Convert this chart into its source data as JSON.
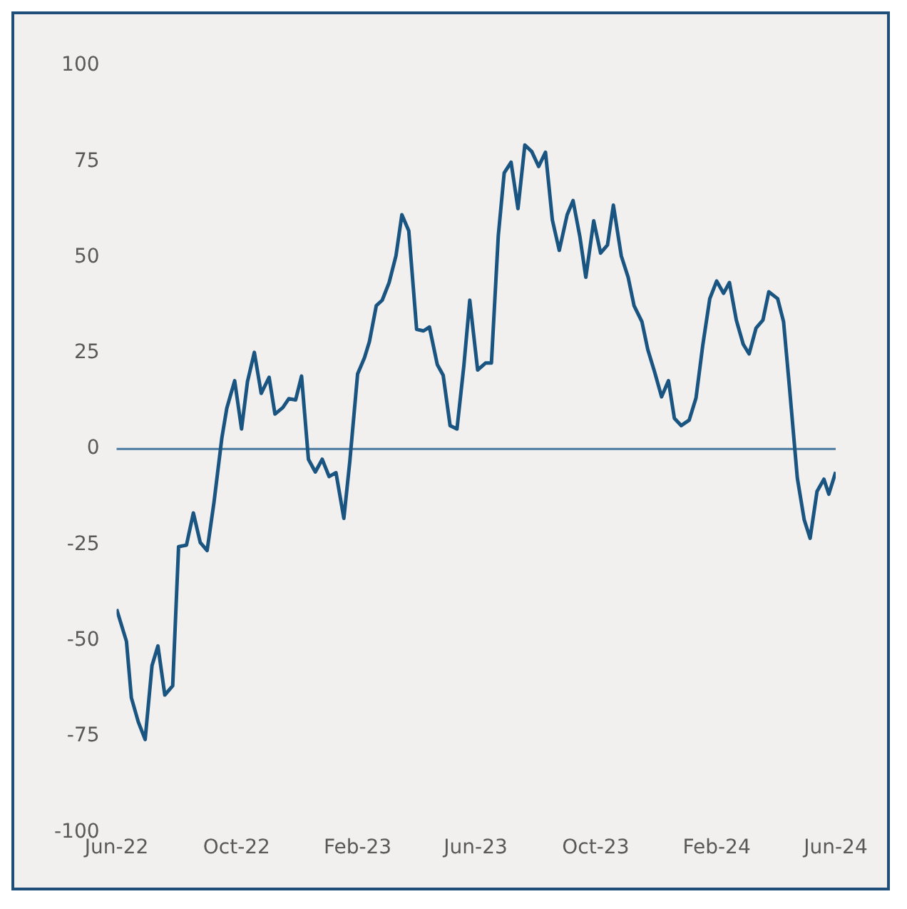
{
  "chart_data": {
    "type": "line",
    "x": [
      "2022-06-01",
      "2022-06-11",
      "2022-06-16",
      "2022-06-23",
      "2022-06-30",
      "2022-07-07",
      "2022-07-13",
      "2022-07-20",
      "2022-07-28",
      "2022-08-03",
      "2022-08-11",
      "2022-08-18",
      "2022-08-25",
      "2022-09-01",
      "2022-09-08",
      "2022-09-16",
      "2022-09-21",
      "2022-09-29",
      "2022-10-06",
      "2022-10-12",
      "2022-10-19",
      "2022-10-26",
      "2022-11-03",
      "2022-11-09",
      "2022-11-17",
      "2022-11-23",
      "2022-11-30",
      "2022-12-06",
      "2022-12-13",
      "2022-12-20",
      "2022-12-27",
      "2023-01-03",
      "2023-01-10",
      "2023-01-18",
      "2023-01-24",
      "2023-02-01",
      "2023-02-08",
      "2023-02-13",
      "2023-02-20",
      "2023-02-26",
      "2023-03-05",
      "2023-03-12",
      "2023-03-18",
      "2023-03-25",
      "2023-04-02",
      "2023-04-09",
      "2023-04-15",
      "2023-04-23",
      "2023-04-29",
      "2023-05-06",
      "2023-05-13",
      "2023-05-20",
      "2023-05-26",
      "2023-06-03",
      "2023-06-11",
      "2023-06-17",
      "2023-06-24",
      "2023-06-30",
      "2023-07-07",
      "2023-07-14",
      "2023-07-21",
      "2023-07-28",
      "2023-08-04",
      "2023-08-11",
      "2023-08-18",
      "2023-08-25",
      "2023-09-02",
      "2023-09-08",
      "2023-09-15",
      "2023-09-21",
      "2023-09-29",
      "2023-10-06",
      "2023-10-13",
      "2023-10-19",
      "2023-10-27",
      "2023-11-03",
      "2023-11-09",
      "2023-11-17",
      "2023-11-23",
      "2023-11-30",
      "2023-12-07",
      "2023-12-14",
      "2023-12-20",
      "2023-12-27",
      "2024-01-04",
      "2024-01-11",
      "2024-01-18",
      "2024-01-25",
      "2024-02-01",
      "2024-02-08",
      "2024-02-14",
      "2024-02-21",
      "2024-02-28",
      "2024-03-05",
      "2024-03-12",
      "2024-03-19",
      "2024-03-25",
      "2024-04-03",
      "2024-04-09",
      "2024-04-15",
      "2024-04-23",
      "2024-04-30",
      "2024-05-06",
      "2024-05-13",
      "2024-05-20",
      "2024-05-25",
      "2024-06-01"
    ],
    "series": [
      {
        "color": "#1a5480",
        "values": [
          -41.8,
          -50.2,
          -64.9,
          -71.2,
          -75.8,
          -56.5,
          -51.4,
          -64.2,
          -61.8,
          -25.5,
          -25.1,
          -16.7,
          -24.4,
          -26.5,
          -13.9,
          2.9,
          10.6,
          17.8,
          5.2,
          17.5,
          25.2,
          14.5,
          18.7,
          9.1,
          10.8,
          13.1,
          12.8,
          19.0,
          -2.7,
          -6.0,
          -2.7,
          -7.2,
          -6.2,
          -18.1,
          -3.4,
          19.6,
          23.8,
          28.0,
          37.4,
          38.8,
          43.4,
          50.4,
          61.1,
          56.9,
          31.2,
          30.8,
          31.8,
          22.0,
          19.2,
          6.1,
          5.2,
          21.7,
          38.8,
          20.6,
          22.4,
          22.4,
          55.6,
          72.0,
          74.8,
          62.7,
          79.3,
          77.6,
          73.7,
          77.4,
          59.7,
          51.8,
          61.1,
          64.8,
          55.3,
          44.8,
          59.5,
          51.1,
          53.2,
          63.6,
          50.4,
          44.8,
          37.4,
          33.2,
          25.9,
          20.0,
          13.6,
          17.8,
          8.0,
          6.1,
          7.5,
          13.3,
          27.3,
          39.2,
          43.8,
          40.6,
          43.4,
          33.6,
          27.3,
          24.8,
          31.5,
          33.6,
          41.0,
          39.2,
          33.2,
          16.1,
          -7.6,
          -18.5,
          -23.3,
          -11.1,
          -7.9,
          -11.8,
          -6.0
        ]
      }
    ],
    "xlim": [
      "2022-06-01",
      "2024-06-01"
    ],
    "xticks": [
      {
        "value": "2022-06",
        "label": "Jun-22"
      },
      {
        "value": "2022-10",
        "label": "Oct-22"
      },
      {
        "value": "2023-02",
        "label": "Feb-23"
      },
      {
        "value": "2023-06",
        "label": "Jun-23"
      },
      {
        "value": "2023-10",
        "label": "Oct-23"
      },
      {
        "value": "2024-02",
        "label": "Feb-24"
      },
      {
        "value": "2024-06",
        "label": "Jun-24"
      }
    ],
    "ylim": [
      -100,
      100
    ],
    "yticks": [
      -100,
      -75,
      -50,
      -25,
      0,
      25,
      50,
      75,
      100
    ],
    "ref_lines": [
      {
        "axis": "y",
        "value": 0,
        "color": "#4a7aa0"
      }
    ],
    "grid": false,
    "legend": false,
    "marker": "none",
    "line_style": "solid"
  }
}
